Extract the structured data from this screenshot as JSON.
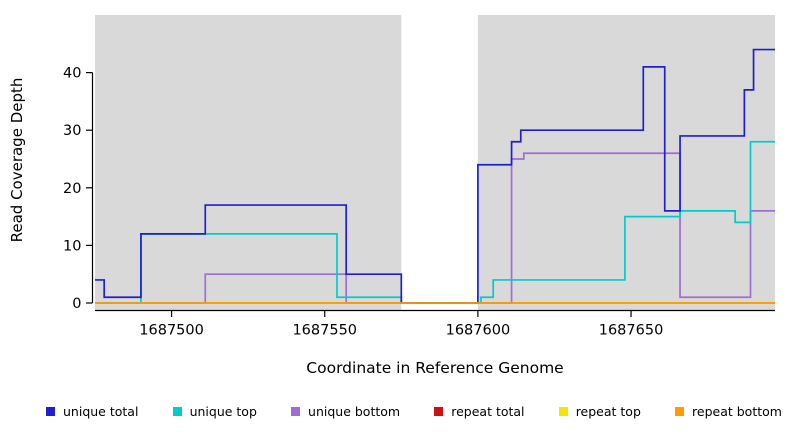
{
  "chart_data": {
    "type": "line",
    "subtype": "step",
    "title": "",
    "xlabel": "Coordinate in Reference Genome",
    "ylabel": "Read Coverage Depth",
    "xlim": [
      1687475,
      1687697
    ],
    "ylim": [
      0,
      50
    ],
    "x_ticks": [
      1687500,
      1687550,
      1687600,
      1687650
    ],
    "y_ticks": [
      0,
      10,
      20,
      30,
      40
    ],
    "grid": false,
    "legend_position": "bottom",
    "background_bands": {
      "color": "#d9d9d9",
      "ranges": [
        [
          1687475,
          1687575
        ],
        [
          1687600,
          1687697
        ]
      ]
    },
    "series": [
      {
        "label": "unique total",
        "color": "#1f1fd1",
        "points": [
          [
            1687475,
            4
          ],
          [
            1687478,
            1
          ],
          [
            1687490,
            12
          ],
          [
            1687511,
            17
          ],
          [
            1687557,
            5
          ],
          [
            1687575,
            0
          ],
          [
            1687600,
            24
          ],
          [
            1687611,
            28
          ],
          [
            1687614,
            30
          ],
          [
            1687654,
            41
          ],
          [
            1687661,
            16
          ],
          [
            1687666,
            29
          ],
          [
            1687687,
            37
          ],
          [
            1687690,
            44
          ]
        ]
      },
      {
        "label": "unique top",
        "color": "#00cccc",
        "points": [
          [
            1687475,
            0
          ],
          [
            1687490,
            12
          ],
          [
            1687554,
            1
          ],
          [
            1687575,
            0
          ],
          [
            1687601,
            1
          ],
          [
            1687605,
            4
          ],
          [
            1687648,
            15
          ],
          [
            1687666,
            16
          ],
          [
            1687684,
            14
          ],
          [
            1687689,
            28
          ]
        ]
      },
      {
        "label": "unique bottom",
        "color": "#a06cd5",
        "points": [
          [
            1687475,
            0
          ],
          [
            1687511,
            5
          ],
          [
            1687557,
            0
          ],
          [
            1687611,
            25
          ],
          [
            1687615,
            26
          ],
          [
            1687666,
            1
          ],
          [
            1687689,
            16
          ]
        ]
      },
      {
        "label": "repeat total",
        "color": "#cc1111",
        "points": [
          [
            1687475,
            0
          ]
        ]
      },
      {
        "label": "repeat top",
        "color": "#f2e600",
        "points": [
          [
            1687475,
            0
          ]
        ]
      },
      {
        "label": "repeat bottom",
        "color": "#ff9d00",
        "points": [
          [
            1687475,
            0
          ]
        ]
      }
    ],
    "draw_order": [
      "repeat total",
      "repeat top",
      "unique bottom",
      "unique top",
      "unique total",
      "repeat bottom"
    ]
  }
}
